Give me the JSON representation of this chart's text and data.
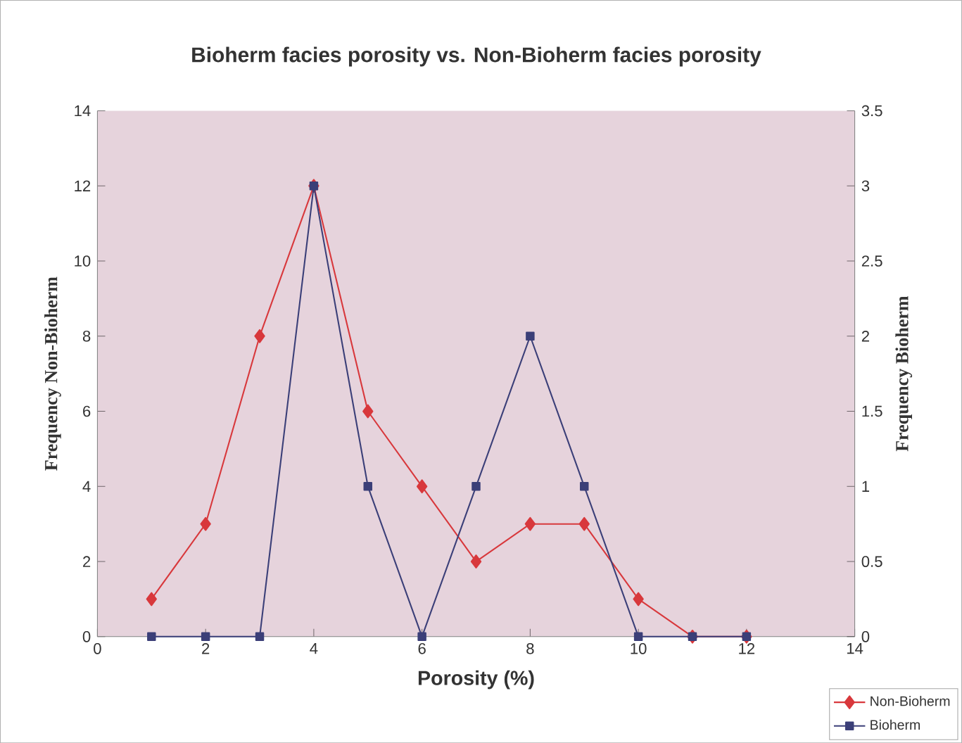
{
  "chart_data": {
    "type": "line",
    "title": "Bioherm facies porosity   vs.  Non-Bioherm facies porosity",
    "xlabel": "Porosity (%)",
    "ylabel": "Frequency Non-Bioherm",
    "y2label": "Frequency Bioherm",
    "x": [
      1,
      2,
      3,
      4,
      5,
      6,
      7,
      8,
      9,
      10,
      11,
      12
    ],
    "series": [
      {
        "name": "Non-Bioherm",
        "color": "#d8383c",
        "marker": "diamond",
        "axis": "y",
        "values": [
          1,
          3,
          8,
          12,
          6,
          4,
          2,
          3,
          3,
          1,
          0,
          0
        ]
      },
      {
        "name": "Bioherm",
        "color": "#3b3f78",
        "marker": "square",
        "axis": "y2",
        "values": [
          0,
          0,
          0,
          3,
          1,
          0,
          1,
          2,
          1,
          0,
          0,
          0
        ]
      }
    ],
    "xlim": [
      0,
      14
    ],
    "xticks": [
      0,
      2,
      4,
      6,
      8,
      10,
      12,
      14
    ],
    "ylim": [
      0,
      14
    ],
    "yticks": [
      0,
      2,
      4,
      6,
      8,
      10,
      12,
      14
    ],
    "y2lim": [
      0,
      3.5
    ],
    "y2ticks": [
      0,
      0.5,
      1,
      1.5,
      2,
      2.5,
      3,
      3.5
    ],
    "legend": "bottom right",
    "grid": false
  }
}
